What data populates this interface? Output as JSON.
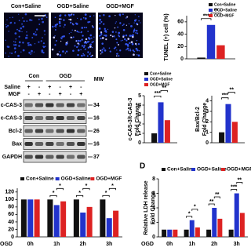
{
  "panel_labels": [
    "D"
  ],
  "images": {
    "labels": [
      "Con+Saline",
      "OGD+Saline",
      "OGD+MGF"
    ]
  },
  "western_blot": {
    "groups": [
      "Con",
      "OGD"
    ],
    "mw_header": "MW",
    "conditions": [
      {
        "name": "Saline",
        "signs": [
          "+",
          "-",
          "+",
          "-",
          "+",
          "-"
        ]
      },
      {
        "name": "MGF",
        "signs": [
          "-",
          "+",
          "-",
          "+",
          "-",
          "+"
        ]
      }
    ],
    "rows": [
      {
        "name": "c-CAS-3",
        "mw": "34"
      },
      {
        "name": "c-CAS-3",
        "mw": "16"
      },
      {
        "name": "Bcl-2",
        "mw": "26"
      },
      {
        "name": "Bax",
        "mw": "16"
      },
      {
        "name": "GAPDH",
        "mw": "37"
      }
    ]
  },
  "chart_data": [
    {
      "type": "bar",
      "ylabel": [
        "TUNEL (+) cell (%)"
      ],
      "ylim": [
        0,
        70
      ],
      "yticks": [
        0,
        20,
        40,
        60
      ],
      "legend": "top-right",
      "series": [
        {
          "name": "Con+Saline",
          "color": "#111111",
          "values": [
            2
          ]
        },
        {
          "name": "OGD+Saline",
          "color": "#2233cc",
          "values": [
            55
          ]
        },
        {
          "name": "OGD+MGF",
          "color": "#dd2222",
          "values": [
            22
          ]
        }
      ],
      "annotations": [
        "***",
        "**"
      ]
    },
    {
      "type": "bar",
      "ylabel": [
        "c-CAS-3/t-CAS-3",
        "Fold Change"
      ],
      "ylim": [
        0,
        5
      ],
      "yticks": [
        0,
        1,
        2,
        3,
        4,
        5
      ],
      "legend": "top-left",
      "series": [
        {
          "name": "Con+Saline",
          "color": "#111111",
          "values": [
            1
          ]
        },
        {
          "name": "OGD+Saline",
          "color": "#2233cc",
          "values": [
            4.3
          ]
        },
        {
          "name": "OGD+MGF",
          "color": "#dd2222",
          "values": [
            2.4
          ]
        }
      ],
      "annotations": [
        "***",
        "**"
      ]
    },
    {
      "type": "bar",
      "ylabel": [
        "Bax/Bcl-2",
        "Fold Change"
      ],
      "ylim": [
        0,
        4.5
      ],
      "yticks": [
        0,
        1,
        2,
        3,
        4
      ],
      "series": [
        {
          "color": "#111111",
          "values": [
            1
          ]
        },
        {
          "color": "#2233cc",
          "values": [
            3.7
          ]
        },
        {
          "color": "#dd2222",
          "values": [
            2.0
          ]
        }
      ],
      "annotations": [
        "***",
        "**"
      ]
    },
    {
      "type": "bar",
      "xlabel": "OGD",
      "categories": [
        "0h",
        "1h",
        "2h",
        "3h"
      ],
      "ylim": [
        0,
        130
      ],
      "yticks": [
        0,
        20,
        40,
        60,
        80,
        100,
        120
      ],
      "legend": "top",
      "series": [
        {
          "name": "Con+Saline",
          "color": "#111111",
          "values": [
            100,
            100,
            100,
            100
          ]
        },
        {
          "name": "OGD+Saline",
          "color": "#2233cc",
          "values": [
            100,
            85,
            65,
            50
          ]
        },
        {
          "name": "OGD+MGF",
          "color": "#dd2222",
          "values": [
            100,
            95,
            80,
            70
          ]
        }
      ],
      "group_annotations": [
        [],
        [
          "*",
          "*"
        ],
        [
          "*",
          "*"
        ],
        [
          "*",
          "*"
        ]
      ]
    },
    {
      "type": "bar",
      "ylabel": [
        "Relative LDH release",
        "Fold Change"
      ],
      "xlabel": "OGD",
      "categories": [
        "0h",
        "1h",
        "2h",
        "3h"
      ],
      "ylim": [
        0,
        8
      ],
      "yticks": [
        0,
        2,
        4,
        6,
        8
      ],
      "legend": "top",
      "series": [
        {
          "name": "Con+Saline",
          "color": "#111111",
          "values": [
            1,
            1,
            1,
            1
          ]
        },
        {
          "name": "OGD+Saline",
          "color": "#2233cc",
          "values": [
            1,
            2.3,
            4,
            6
          ]
        },
        {
          "name": "OGD+MGF",
          "color": "#dd2222",
          "values": [
            1,
            1.3,
            2.5,
            3.3
          ]
        }
      ],
      "group_annotations": [
        [],
        [
          "*",
          "*"
        ],
        [
          "**",
          "**"
        ],
        [
          "***",
          "**"
        ]
      ]
    }
  ]
}
